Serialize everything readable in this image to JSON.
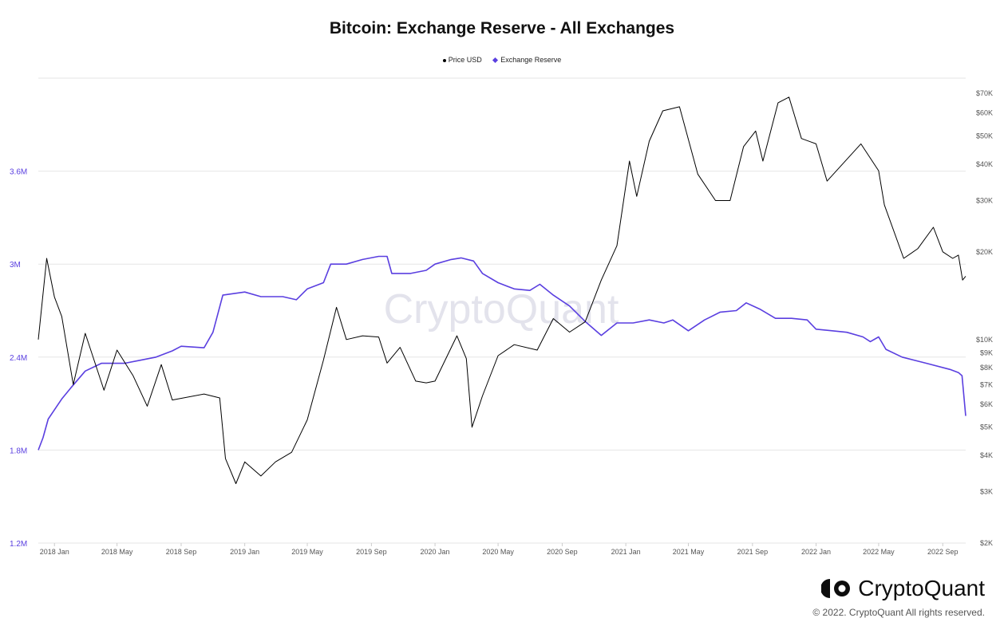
{
  "brand": {
    "name": "CryptoQuant",
    "watermark": "CryptoQuant",
    "copyright": "© 2022. CryptoQuant All rights reserved."
  },
  "colors": {
    "reserve": "#5a3fe0",
    "price": "#000000",
    "grid": "#e6e6e6",
    "axis_left": "#5a3fe0",
    "axis_right": "#555555"
  },
  "chart_data": {
    "type": "line",
    "title": "Bitcoin: Exchange Reserve - All Exchanges",
    "legend": [
      "Price USD",
      "Exchange Reserve"
    ],
    "legend_position": "top-center",
    "grid": true,
    "x": {
      "range": [
        "2017-12-01",
        "2022-10-15"
      ],
      "ticks": [
        {
          "date": "2018-01-01",
          "label": "2018 Jan"
        },
        {
          "date": "2018-05-01",
          "label": "2018 May"
        },
        {
          "date": "2018-09-01",
          "label": "2018 Sep"
        },
        {
          "date": "2019-01-01",
          "label": "2019 Jan"
        },
        {
          "date": "2019-05-01",
          "label": "2019 May"
        },
        {
          "date": "2019-09-01",
          "label": "2019 Sep"
        },
        {
          "date": "2020-01-01",
          "label": "2020 Jan"
        },
        {
          "date": "2020-05-01",
          "label": "2020 May"
        },
        {
          "date": "2020-09-01",
          "label": "2020 Sep"
        },
        {
          "date": "2021-01-01",
          "label": "2021 Jan"
        },
        {
          "date": "2021-05-01",
          "label": "2021 May"
        },
        {
          "date": "2021-09-01",
          "label": "2021 Sep"
        },
        {
          "date": "2022-01-01",
          "label": "2022 Jan"
        },
        {
          "date": "2022-05-01",
          "label": "2022 May"
        },
        {
          "date": "2022-09-01",
          "label": "2022 Sep"
        }
      ]
    },
    "y_left": {
      "name": "Exchange Reserve",
      "range": [
        1200000,
        4200000
      ],
      "ticks": [
        {
          "value": 1200000,
          "label": "1.2M"
        },
        {
          "value": 1800000,
          "label": "1.8M"
        },
        {
          "value": 2400000,
          "label": "2.4M"
        },
        {
          "value": 3000000,
          "label": "3M"
        },
        {
          "value": 3600000,
          "label": "3.6M"
        }
      ]
    },
    "y_right": {
      "name": "Price USD",
      "scale": "log",
      "range": [
        2000,
        79000
      ],
      "ticks": [
        {
          "value": 2000,
          "label": "$2K"
        },
        {
          "value": 3000,
          "label": "$3K"
        },
        {
          "value": 4000,
          "label": "$4K"
        },
        {
          "value": 5000,
          "label": "$5K"
        },
        {
          "value": 6000,
          "label": "$6K"
        },
        {
          "value": 7000,
          "label": "$7K"
        },
        {
          "value": 8000,
          "label": "$8K"
        },
        {
          "value": 9000,
          "label": "$9K"
        },
        {
          "value": 10000,
          "label": "$10K"
        },
        {
          "value": 20000,
          "label": "$20K"
        },
        {
          "value": 30000,
          "label": "$30K"
        },
        {
          "value": 40000,
          "label": "$40K"
        },
        {
          "value": 50000,
          "label": "$50K"
        },
        {
          "value": 60000,
          "label": "$60K"
        },
        {
          "value": 70000,
          "label": "$70K"
        }
      ]
    },
    "series": [
      {
        "name": "Exchange Reserve",
        "axis": "left",
        "points": [
          [
            "2017-12-01",
            1800000
          ],
          [
            "2017-12-10",
            1880000
          ],
          [
            "2017-12-20",
            2000000
          ],
          [
            "2018-01-01",
            2060000
          ],
          [
            "2018-01-15",
            2130000
          ],
          [
            "2018-02-01",
            2200000
          ],
          [
            "2018-03-01",
            2310000
          ],
          [
            "2018-04-01",
            2360000
          ],
          [
            "2018-05-15",
            2360000
          ],
          [
            "2018-06-15",
            2380000
          ],
          [
            "2018-07-15",
            2400000
          ],
          [
            "2018-08-15",
            2440000
          ],
          [
            "2018-09-01",
            2470000
          ],
          [
            "2018-10-15",
            2460000
          ],
          [
            "2018-11-01",
            2560000
          ],
          [
            "2018-11-20",
            2800000
          ],
          [
            "2019-01-01",
            2820000
          ],
          [
            "2019-02-01",
            2790000
          ],
          [
            "2019-03-15",
            2790000
          ],
          [
            "2019-04-10",
            2770000
          ],
          [
            "2019-05-01",
            2840000
          ],
          [
            "2019-06-01",
            2880000
          ],
          [
            "2019-06-15",
            3000000
          ],
          [
            "2019-07-15",
            3000000
          ],
          [
            "2019-08-15",
            3030000
          ],
          [
            "2019-09-15",
            3050000
          ],
          [
            "2019-10-01",
            3050000
          ],
          [
            "2019-10-10",
            2940000
          ],
          [
            "2019-11-15",
            2940000
          ],
          [
            "2019-12-15",
            2960000
          ],
          [
            "2020-01-01",
            3000000
          ],
          [
            "2020-02-01",
            3030000
          ],
          [
            "2020-02-20",
            3040000
          ],
          [
            "2020-03-15",
            3020000
          ],
          [
            "2020-04-01",
            2940000
          ],
          [
            "2020-05-01",
            2880000
          ],
          [
            "2020-06-01",
            2840000
          ],
          [
            "2020-07-01",
            2830000
          ],
          [
            "2020-07-20",
            2870000
          ],
          [
            "2020-08-15",
            2800000
          ],
          [
            "2020-09-15",
            2730000
          ],
          [
            "2020-10-15",
            2630000
          ],
          [
            "2020-11-15",
            2540000
          ],
          [
            "2020-12-15",
            2620000
          ],
          [
            "2021-01-15",
            2620000
          ],
          [
            "2021-02-15",
            2640000
          ],
          [
            "2021-03-15",
            2620000
          ],
          [
            "2021-04-01",
            2640000
          ],
          [
            "2021-05-01",
            2570000
          ],
          [
            "2021-06-01",
            2640000
          ],
          [
            "2021-07-01",
            2690000
          ],
          [
            "2021-08-01",
            2700000
          ],
          [
            "2021-08-20",
            2750000
          ],
          [
            "2021-09-15",
            2710000
          ],
          [
            "2021-10-15",
            2650000
          ],
          [
            "2021-11-15",
            2650000
          ],
          [
            "2021-12-15",
            2640000
          ],
          [
            "2022-01-01",
            2580000
          ],
          [
            "2022-02-01",
            2570000
          ],
          [
            "2022-03-01",
            2560000
          ],
          [
            "2022-04-01",
            2530000
          ],
          [
            "2022-04-15",
            2500000
          ],
          [
            "2022-05-01",
            2530000
          ],
          [
            "2022-05-15",
            2450000
          ],
          [
            "2022-06-15",
            2400000
          ],
          [
            "2022-08-01",
            2360000
          ],
          [
            "2022-09-15",
            2320000
          ],
          [
            "2022-10-01",
            2300000
          ],
          [
            "2022-10-08",
            2280000
          ],
          [
            "2022-10-15",
            2020000
          ]
        ]
      },
      {
        "name": "Price USD",
        "axis": "right",
        "points": [
          [
            "2017-12-01",
            10000
          ],
          [
            "2017-12-17",
            19000
          ],
          [
            "2018-01-01",
            14000
          ],
          [
            "2018-01-15",
            12000
          ],
          [
            "2018-02-06",
            7000
          ],
          [
            "2018-03-01",
            10500
          ],
          [
            "2018-04-06",
            6700
          ],
          [
            "2018-05-01",
            9200
          ],
          [
            "2018-06-01",
            7500
          ],
          [
            "2018-06-28",
            5900
          ],
          [
            "2018-07-25",
            8200
          ],
          [
            "2018-08-15",
            6200
          ],
          [
            "2018-10-15",
            6500
          ],
          [
            "2018-11-14",
            6300
          ],
          [
            "2018-11-25",
            3900
          ],
          [
            "2018-12-15",
            3200
          ],
          [
            "2019-01-01",
            3800
          ],
          [
            "2019-02-01",
            3400
          ],
          [
            "2019-03-01",
            3800
          ],
          [
            "2019-04-01",
            4100
          ],
          [
            "2019-05-01",
            5300
          ],
          [
            "2019-06-01",
            8500
          ],
          [
            "2019-06-26",
            12900
          ],
          [
            "2019-07-15",
            10000
          ],
          [
            "2019-08-15",
            10300
          ],
          [
            "2019-09-15",
            10200
          ],
          [
            "2019-10-01",
            8300
          ],
          [
            "2019-10-26",
            9400
          ],
          [
            "2019-11-25",
            7200
          ],
          [
            "2019-12-15",
            7100
          ],
          [
            "2020-01-01",
            7200
          ],
          [
            "2020-02-12",
            10300
          ],
          [
            "2020-03-01",
            8600
          ],
          [
            "2020-03-12",
            5000
          ],
          [
            "2020-04-01",
            6400
          ],
          [
            "2020-05-01",
            8800
          ],
          [
            "2020-06-01",
            9600
          ],
          [
            "2020-07-15",
            9200
          ],
          [
            "2020-08-15",
            11800
          ],
          [
            "2020-09-15",
            10600
          ],
          [
            "2020-10-15",
            11500
          ],
          [
            "2020-11-15",
            16000
          ],
          [
            "2020-12-15",
            21000
          ],
          [
            "2021-01-08",
            41000
          ],
          [
            "2021-01-22",
            31000
          ],
          [
            "2021-02-15",
            48000
          ],
          [
            "2021-03-13",
            61000
          ],
          [
            "2021-04-14",
            63000
          ],
          [
            "2021-05-19",
            37000
          ],
          [
            "2021-06-22",
            30000
          ],
          [
            "2021-07-20",
            30000
          ],
          [
            "2021-08-15",
            46000
          ],
          [
            "2021-09-07",
            52000
          ],
          [
            "2021-09-21",
            41000
          ],
          [
            "2021-10-20",
            65000
          ],
          [
            "2021-11-10",
            68000
          ],
          [
            "2021-12-04",
            49000
          ],
          [
            "2022-01-01",
            47000
          ],
          [
            "2022-01-22",
            35000
          ],
          [
            "2022-03-28",
            47000
          ],
          [
            "2022-05-01",
            38000
          ],
          [
            "2022-05-12",
            29000
          ],
          [
            "2022-06-18",
            19000
          ],
          [
            "2022-07-15",
            20500
          ],
          [
            "2022-08-14",
            24300
          ],
          [
            "2022-09-01",
            20000
          ],
          [
            "2022-09-20",
            19000
          ],
          [
            "2022-10-01",
            19500
          ],
          [
            "2022-10-09",
            16000
          ],
          [
            "2022-10-15",
            16500
          ]
        ]
      }
    ]
  }
}
